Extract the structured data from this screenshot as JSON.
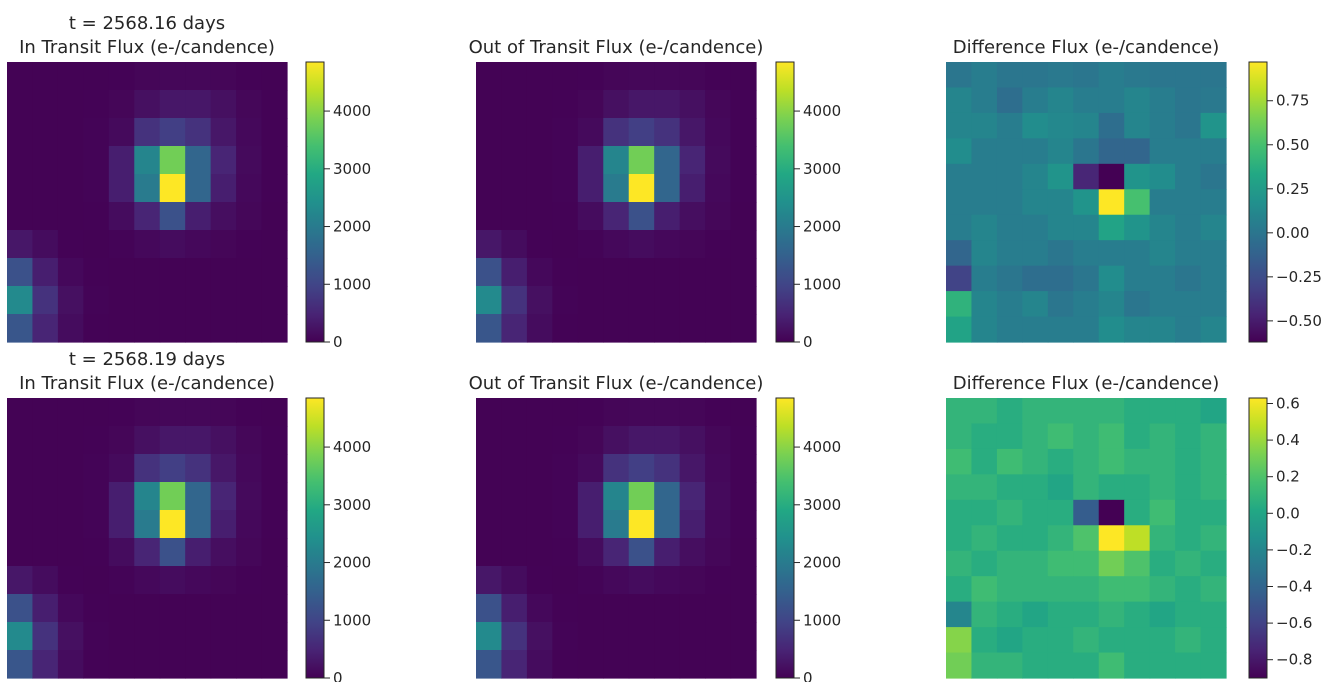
{
  "colors": {
    "background": "#ffffff",
    "text": "#262626",
    "colormap": "viridis"
  },
  "chart_data": [
    {
      "type": "heatmap",
      "row": 0,
      "col": 0,
      "time_label": "t = 2568.16 days",
      "title": "In Transit Flux (e-/candence)",
      "vmin": 0,
      "vmax": 4850,
      "colorbar_ticks": [
        0,
        1000,
        2000,
        3000,
        4000
      ],
      "colorbar_tick_labels": [
        "0",
        "1000",
        "2000",
        "3000",
        "4000"
      ],
      "z": [
        [
          20,
          20,
          20,
          20,
          30,
          60,
          80,
          80,
          60,
          30,
          20
        ],
        [
          20,
          20,
          20,
          30,
          60,
          200,
          300,
          300,
          200,
          80,
          30
        ],
        [
          20,
          20,
          20,
          40,
          120,
          700,
          900,
          700,
          300,
          100,
          30
        ],
        [
          20,
          20,
          20,
          40,
          400,
          2200,
          3800,
          1600,
          500,
          120,
          30
        ],
        [
          20,
          20,
          20,
          40,
          400,
          2000,
          4850,
          1600,
          400,
          100,
          30
        ],
        [
          20,
          20,
          20,
          30,
          150,
          500,
          1200,
          400,
          180,
          80,
          20
        ],
        [
          300,
          150,
          30,
          20,
          40,
          100,
          150,
          100,
          60,
          30,
          20
        ],
        [
          1200,
          400,
          100,
          30,
          20,
          20,
          20,
          20,
          20,
          20,
          20
        ],
        [
          2300,
          700,
          200,
          40,
          20,
          20,
          20,
          20,
          20,
          20,
          20
        ],
        [
          1300,
          500,
          150,
          30,
          20,
          20,
          20,
          20,
          20,
          20,
          20
        ]
      ]
    },
    {
      "type": "heatmap",
      "row": 0,
      "col": 1,
      "title": "Out of Transit Flux (e-/candence)",
      "vmin": 0,
      "vmax": 4850,
      "colorbar_ticks": [
        0,
        1000,
        2000,
        3000,
        4000
      ],
      "colorbar_tick_labels": [
        "0",
        "1000",
        "2000",
        "3000",
        "4000"
      ],
      "z": [
        [
          20,
          20,
          20,
          20,
          30,
          60,
          80,
          80,
          60,
          30,
          20
        ],
        [
          20,
          20,
          20,
          30,
          60,
          200,
          300,
          300,
          200,
          80,
          30
        ],
        [
          20,
          20,
          20,
          40,
          120,
          700,
          900,
          700,
          300,
          100,
          30
        ],
        [
          20,
          20,
          20,
          40,
          400,
          2200,
          3800,
          1600,
          500,
          120,
          30
        ],
        [
          20,
          20,
          20,
          40,
          400,
          2000,
          4850,
          1600,
          400,
          100,
          30
        ],
        [
          20,
          20,
          20,
          30,
          150,
          500,
          1200,
          400,
          180,
          80,
          20
        ],
        [
          300,
          150,
          30,
          20,
          40,
          100,
          150,
          100,
          60,
          30,
          20
        ],
        [
          1200,
          400,
          100,
          30,
          20,
          20,
          20,
          20,
          20,
          20,
          20
        ],
        [
          2300,
          700,
          200,
          40,
          20,
          20,
          20,
          20,
          20,
          20,
          20
        ],
        [
          1300,
          500,
          150,
          30,
          20,
          20,
          20,
          20,
          20,
          20,
          20
        ]
      ]
    },
    {
      "type": "heatmap",
      "row": 0,
      "col": 2,
      "title": "Difference Flux (e-/candence)",
      "vmin": -0.62,
      "vmax": 0.97,
      "colorbar_ticks": [
        -0.5,
        -0.25,
        0.0,
        0.25,
        0.5,
        0.75
      ],
      "colorbar_tick_labels": [
        "−0.50",
        "−0.25",
        "0.00",
        "0.25",
        "0.50",
        "0.75"
      ],
      "z": [
        [
          0.0,
          0.05,
          0.0,
          0.0,
          0.02,
          0.0,
          0.05,
          0.02,
          0.0,
          0.0,
          0.0
        ],
        [
          0.1,
          0.05,
          -0.05,
          0.05,
          0.1,
          0.05,
          0.05,
          0.1,
          0.05,
          0.0,
          0.02
        ],
        [
          0.1,
          0.1,
          0.05,
          0.15,
          0.12,
          0.1,
          -0.05,
          0.1,
          0.05,
          0.0,
          0.2
        ],
        [
          0.15,
          0.05,
          0.05,
          0.05,
          0.1,
          0.0,
          -0.1,
          -0.1,
          0.05,
          0.05,
          0.05
        ],
        [
          0.05,
          0.05,
          0.05,
          0.1,
          0.2,
          -0.45,
          -0.62,
          0.2,
          0.15,
          0.05,
          0.0
        ],
        [
          0.05,
          0.05,
          0.05,
          0.1,
          0.1,
          0.2,
          0.97,
          0.5,
          0.05,
          0.05,
          0.05
        ],
        [
          0.05,
          0.1,
          0.05,
          0.05,
          0.1,
          0.1,
          0.3,
          0.2,
          0.1,
          0.05,
          0.1
        ],
        [
          -0.1,
          0.1,
          0.05,
          0.05,
          0.0,
          0.05,
          0.05,
          0.05,
          0.1,
          0.05,
          0.05
        ],
        [
          -0.3,
          0.05,
          0.0,
          -0.05,
          -0.05,
          0.0,
          0.15,
          0.05,
          0.05,
          0.0,
          0.05
        ],
        [
          0.4,
          0.1,
          0.05,
          0.1,
          0.0,
          0.05,
          0.1,
          0.0,
          0.05,
          0.05,
          0.05
        ],
        [
          0.3,
          0.1,
          0.05,
          0.05,
          0.05,
          0.05,
          0.15,
          0.1,
          0.1,
          0.05,
          0.1
        ]
      ]
    },
    {
      "type": "heatmap",
      "row": 1,
      "col": 0,
      "time_label": "t = 2568.19 days",
      "title": "In Transit Flux (e-/candence)",
      "vmin": 0,
      "vmax": 4850,
      "colorbar_ticks": [
        0,
        1000,
        2000,
        3000,
        4000
      ],
      "colorbar_tick_labels": [
        "0",
        "1000",
        "2000",
        "3000",
        "4000"
      ],
      "z": [
        [
          20,
          20,
          20,
          20,
          30,
          60,
          80,
          80,
          60,
          30,
          20
        ],
        [
          20,
          20,
          20,
          30,
          60,
          200,
          300,
          300,
          200,
          80,
          30
        ],
        [
          20,
          20,
          20,
          40,
          120,
          700,
          900,
          700,
          300,
          100,
          30
        ],
        [
          20,
          20,
          20,
          40,
          400,
          2200,
          3800,
          1600,
          500,
          120,
          30
        ],
        [
          20,
          20,
          20,
          40,
          400,
          2000,
          4850,
          1600,
          400,
          100,
          30
        ],
        [
          20,
          20,
          20,
          30,
          150,
          500,
          1200,
          400,
          180,
          80,
          20
        ],
        [
          300,
          150,
          30,
          20,
          40,
          100,
          150,
          100,
          60,
          30,
          20
        ],
        [
          1200,
          400,
          100,
          30,
          20,
          20,
          20,
          20,
          20,
          20,
          20
        ],
        [
          2300,
          700,
          200,
          40,
          20,
          20,
          20,
          20,
          20,
          20,
          20
        ],
        [
          1300,
          500,
          150,
          30,
          20,
          20,
          20,
          20,
          20,
          20,
          20
        ]
      ]
    },
    {
      "type": "heatmap",
      "row": 1,
      "col": 1,
      "title": "Out of Transit Flux (e-/candence)",
      "vmin": 0,
      "vmax": 4850,
      "colorbar_ticks": [
        0,
        1000,
        2000,
        3000,
        4000
      ],
      "colorbar_tick_labels": [
        "0",
        "1000",
        "2000",
        "3000",
        "4000"
      ],
      "z": [
        [
          20,
          20,
          20,
          20,
          30,
          60,
          80,
          80,
          60,
          30,
          20
        ],
        [
          20,
          20,
          20,
          30,
          60,
          200,
          300,
          300,
          200,
          80,
          30
        ],
        [
          20,
          20,
          20,
          40,
          120,
          700,
          900,
          700,
          300,
          100,
          30
        ],
        [
          20,
          20,
          20,
          40,
          400,
          2200,
          3800,
          1600,
          500,
          120,
          30
        ],
        [
          20,
          20,
          20,
          40,
          400,
          2000,
          4850,
          1600,
          400,
          100,
          30
        ],
        [
          20,
          20,
          20,
          30,
          150,
          500,
          1200,
          400,
          180,
          80,
          20
        ],
        [
          300,
          150,
          30,
          20,
          40,
          100,
          150,
          100,
          60,
          30,
          20
        ],
        [
          1200,
          400,
          100,
          30,
          20,
          20,
          20,
          20,
          20,
          20,
          20
        ],
        [
          2300,
          700,
          200,
          40,
          20,
          20,
          20,
          20,
          20,
          20,
          20
        ],
        [
          1300,
          500,
          150,
          30,
          20,
          20,
          20,
          20,
          20,
          20,
          20
        ]
      ]
    },
    {
      "type": "heatmap",
      "row": 1,
      "col": 2,
      "title": "Difference Flux (e-/candence)",
      "vmin": -0.9,
      "vmax": 0.63,
      "colorbar_ticks": [
        -0.8,
        -0.6,
        -0.4,
        -0.2,
        0.0,
        0.2,
        0.4,
        0.6
      ],
      "colorbar_tick_labels": [
        "−0.8",
        "−0.6",
        "−0.4",
        "−0.2",
        "0.0",
        "0.2",
        "0.4",
        "0.6"
      ],
      "z": [
        [
          0.1,
          0.1,
          0.05,
          0.1,
          0.1,
          0.1,
          0.1,
          0.05,
          0.05,
          0.05,
          0.0
        ],
        [
          0.1,
          0.05,
          0.05,
          0.1,
          0.15,
          0.1,
          0.15,
          0.05,
          0.1,
          0.05,
          0.1
        ],
        [
          0.15,
          0.05,
          0.15,
          0.1,
          0.05,
          0.1,
          0.15,
          0.1,
          0.1,
          0.05,
          0.1
        ],
        [
          0.1,
          0.1,
          0.05,
          0.05,
          0.0,
          0.1,
          0.05,
          0.05,
          0.1,
          0.05,
          0.1
        ],
        [
          0.05,
          0.05,
          0.1,
          0.05,
          0.05,
          -0.45,
          -0.9,
          0.05,
          0.15,
          0.05,
          0.05
        ],
        [
          0.05,
          0.1,
          0.05,
          0.05,
          0.1,
          0.2,
          0.63,
          0.48,
          0.1,
          0.05,
          0.1
        ],
        [
          0.1,
          0.05,
          0.1,
          0.1,
          0.15,
          0.15,
          0.3,
          0.2,
          0.05,
          0.1,
          0.05
        ],
        [
          0.05,
          0.15,
          0.1,
          0.1,
          0.1,
          0.1,
          0.15,
          0.15,
          0.1,
          0.05,
          0.1
        ],
        [
          -0.2,
          0.1,
          0.05,
          0.0,
          0.05,
          0.05,
          0.1,
          0.05,
          0.0,
          0.05,
          0.05
        ],
        [
          0.35,
          0.05,
          0.0,
          0.05,
          0.05,
          0.1,
          0.05,
          0.05,
          0.05,
          0.1,
          0.05
        ],
        [
          0.3,
          0.1,
          0.1,
          0.05,
          0.05,
          0.05,
          0.15,
          0.05,
          0.05,
          0.05,
          0.05
        ]
      ]
    }
  ]
}
